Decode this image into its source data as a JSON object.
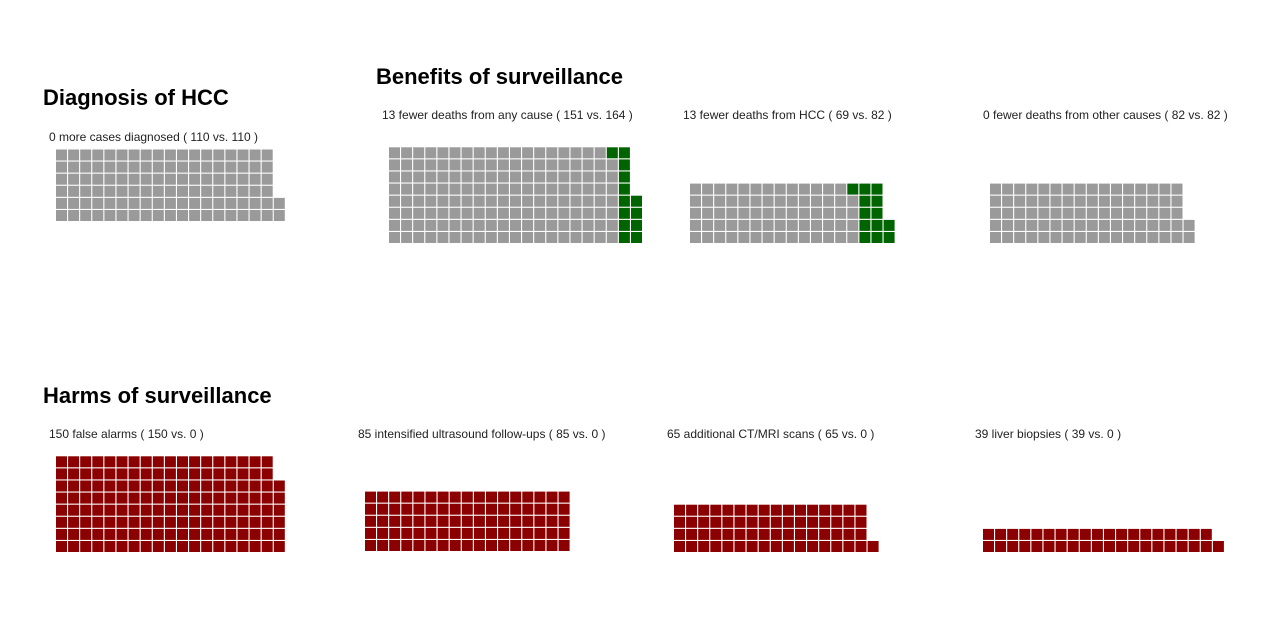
{
  "sections": {
    "diagnosis": {
      "title": "Diagnosis of HCC"
    },
    "benefits": {
      "title": "Benefits of surveillance"
    },
    "harms": {
      "title": "Harms of surveillance"
    }
  },
  "colors": {
    "neutral": "#9a9a9a",
    "benefit": "#006400",
    "harm": "#8b0000",
    "grid_line": "#ffffff"
  },
  "chart_data": [
    {
      "type": "waffle",
      "id": "cases-diagnosed",
      "section": "diagnosis",
      "label": "0 more cases diagnosed ( 110 vs. 110 )",
      "difference": 0,
      "surveillance": 110,
      "no_surveillance": 110,
      "neutral_count": 110,
      "highlight_count": 0,
      "highlight_role": "benefit",
      "cells_per_column": 6
    },
    {
      "type": "waffle",
      "id": "deaths-any-cause",
      "section": "benefits",
      "label": "13 fewer deaths from any cause ( 151 vs. 164 )",
      "difference": 13,
      "surveillance": 151,
      "no_surveillance": 164,
      "neutral_count": 151,
      "highlight_count": 13,
      "highlight_role": "benefit",
      "cells_per_column": 8
    },
    {
      "type": "waffle",
      "id": "deaths-hcc",
      "section": "benefits",
      "label": "13 fewer deaths from HCC ( 69 vs. 82 )",
      "difference": 13,
      "surveillance": 69,
      "no_surveillance": 82,
      "neutral_count": 69,
      "highlight_count": 13,
      "highlight_role": "benefit",
      "cells_per_column": 5
    },
    {
      "type": "waffle",
      "id": "deaths-other",
      "section": "benefits",
      "label": "0 fewer deaths from other causes ( 82 vs. 82 )",
      "difference": 0,
      "surveillance": 82,
      "no_surveillance": 82,
      "neutral_count": 82,
      "highlight_count": 0,
      "highlight_role": "benefit",
      "cells_per_column": 5
    },
    {
      "type": "waffle",
      "id": "false-alarms",
      "section": "harms",
      "label": "150 false alarms ( 150 vs. 0 )",
      "difference": 150,
      "surveillance": 150,
      "no_surveillance": 0,
      "neutral_count": 0,
      "highlight_count": 150,
      "highlight_role": "harm",
      "cells_per_column": 8
    },
    {
      "type": "waffle",
      "id": "ultrasound-followups",
      "section": "harms",
      "label": "85 intensified ultrasound follow-ups ( 85 vs. 0 )",
      "difference": 85,
      "surveillance": 85,
      "no_surveillance": 0,
      "neutral_count": 0,
      "highlight_count": 85,
      "highlight_role": "harm",
      "cells_per_column": 5
    },
    {
      "type": "waffle",
      "id": "ct-mri-scans",
      "section": "harms",
      "label": "65 additional CT/MRI scans ( 65 vs. 0 )",
      "difference": 65,
      "surveillance": 65,
      "no_surveillance": 0,
      "neutral_count": 0,
      "highlight_count": 65,
      "highlight_role": "harm",
      "cells_per_column": 4
    },
    {
      "type": "waffle",
      "id": "liver-biopsies",
      "section": "harms",
      "label": "39 liver biopsies ( 39 vs. 0 )",
      "difference": 39,
      "surveillance": 39,
      "no_surveillance": 0,
      "neutral_count": 0,
      "highlight_count": 39,
      "highlight_role": "harm",
      "cells_per_column": 2
    }
  ]
}
